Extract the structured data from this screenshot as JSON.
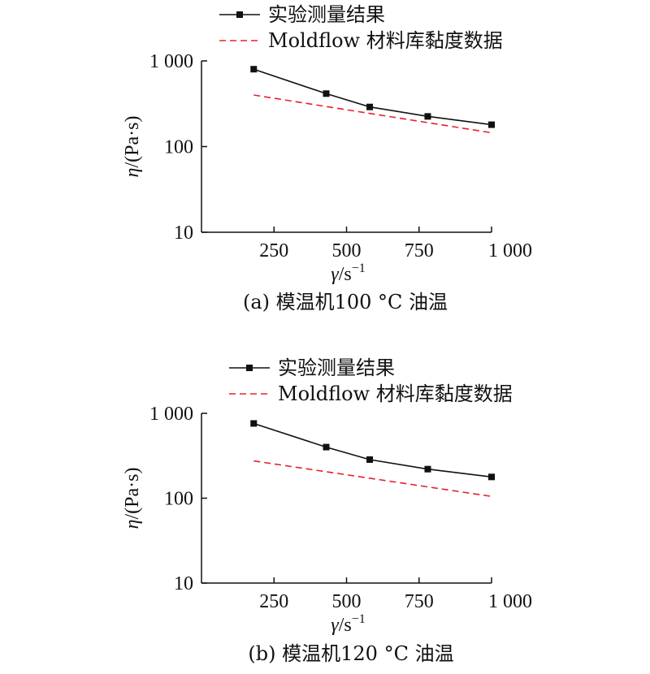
{
  "chart_data": [
    {
      "type": "line",
      "x_scale": "linear",
      "y_scale": "log",
      "xlim": [
        0,
        1000
      ],
      "ylim": [
        10,
        1000
      ],
      "x_ticks": [
        250,
        500,
        750,
        1000
      ],
      "x_tick_labels": [
        "250",
        "500",
        "750",
        "1 000"
      ],
      "y_ticks": [
        10,
        100,
        1000
      ],
      "y_tick_labels": [
        "10",
        "100",
        "1 000"
      ],
      "ylabel": {
        "main": "η",
        "unit": "/(Pa·s)"
      },
      "xlabel": {
        "main": "γ",
        "unit": "/s",
        "exp": "−1"
      },
      "caption": "(a) 模温机100 °C 油温",
      "legend_position": "top",
      "series": [
        {
          "name": "实验测量结果",
          "color": "#111111",
          "style": "solid-square-markers",
          "x": [
            180,
            430,
            580,
            780,
            1000
          ],
          "y": [
            800,
            415,
            290,
            225,
            180
          ]
        },
        {
          "name": "Moldflow 材料库黏度数据",
          "color": "#e8202a",
          "style": "dashed",
          "x": [
            180,
            1000
          ],
          "y": [
            400,
            145
          ]
        }
      ]
    },
    {
      "type": "line",
      "x_scale": "linear",
      "y_scale": "log",
      "xlim": [
        0,
        1000
      ],
      "ylim": [
        10,
        1000
      ],
      "x_ticks": [
        250,
        500,
        750,
        1000
      ],
      "x_tick_labels": [
        "250",
        "500",
        "750",
        "1 000"
      ],
      "y_ticks": [
        10,
        100,
        1000
      ],
      "y_tick_labels": [
        "10",
        "100",
        "1 000"
      ],
      "ylabel": {
        "main": "η",
        "unit": "/(Pa·s)"
      },
      "xlabel": {
        "main": "γ",
        "unit": "/s",
        "exp": "−1"
      },
      "caption": "(b) 模温机120 °C 油温",
      "legend_position": "top",
      "series": [
        {
          "name": "实验测量结果",
          "color": "#111111",
          "style": "solid-square-markers",
          "x": [
            180,
            430,
            580,
            780,
            1000
          ],
          "y": [
            760,
            400,
            285,
            220,
            178
          ]
        },
        {
          "name": "Moldflow 材料库黏度数据",
          "color": "#e8202a",
          "style": "dashed",
          "x": [
            180,
            1000
          ],
          "y": [
            275,
            105
          ]
        }
      ]
    }
  ]
}
